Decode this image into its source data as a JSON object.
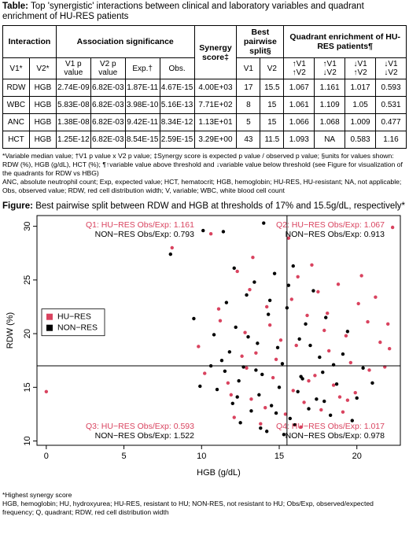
{
  "table": {
    "label": "Table:",
    "title": "Top 'synergistic' interactions between clinical and laboratory variables and quadrant enrichment of HU-RES patients",
    "groups": [
      "Interaction",
      "Association significance",
      "Synergy score‡",
      "Best pairwise split§",
      "Quadrant enrichment of HU-RES patients¶"
    ],
    "columns": [
      "V1*",
      "V2*",
      "V1 p value",
      "V2 p value",
      "Exp.†",
      "Obs.",
      "V1",
      "V2",
      "↑V1 ↑V2",
      "↑V1 ↓V2",
      "↓V1 ↑V2",
      "↓V1 ↓V2"
    ],
    "rows": [
      [
        "RDW",
        "HGB",
        "2.74E-09",
        "6.82E-03",
        "1.87E-11",
        "4.67E-15",
        "4.00E+03",
        "17",
        "15.5",
        "1.067",
        "1.161",
        "1.017",
        "0.593"
      ],
      [
        "WBC",
        "HGB",
        "5.83E-08",
        "6.82E-03",
        "3.98E-10",
        "5.16E-13",
        "7.71E+02",
        "8",
        "15",
        "1.061",
        "1.109",
        "1.05",
        "0.531"
      ],
      [
        "ANC",
        "HGB",
        "1.38E-08",
        "6.82E-03",
        "9.42E-11",
        "8.34E-12",
        "1.13E+01",
        "5",
        "15",
        "1.066",
        "1.068",
        "1.009",
        "0.477"
      ],
      [
        "HCT",
        "HGB",
        "1.25E-12",
        "6.82E-03",
        "8.54E-15",
        "2.59E-15",
        "3.29E+00",
        "43",
        "11.5",
        "1.093",
        "NA",
        "0.583",
        "1.16"
      ]
    ],
    "notes": [
      "*Variable median value; †V1 p value x V2 p value; ‡Synergy score is expected p value / observed p value; §units for values shown: RDW (%), HGB (g/dL), HCT (%); ¶↑variable value above threshold and ↓variable value below threshold (see Figure for visualization of the quadrants for RDW vs HBG)",
      "ANC, absolute neutrophil count; Exp, expected value; HCT, hematocrit; HGB, hemoglobin; HU-RES, HU-resistant; NA, not applicable; Obs, observed value; RDW, red cell distribution width; V, variable; WBC, white blood cell count"
    ]
  },
  "chart_data": {
    "type": "scatter",
    "label": "Figure:",
    "title": "Best pairwise split between RDW and HGB at thresholds of 17% and 15.5g/dL, respectively*",
    "xlabel": "HGB (g/dL)",
    "ylabel": "RDW (%)",
    "xlim": [
      -0.6,
      22.8
    ],
    "ylim": [
      9.6,
      31
    ],
    "xticks": [
      0,
      5,
      10,
      15,
      20
    ],
    "yticks": [
      10,
      15,
      20,
      25,
      30
    ],
    "x_threshold": 15.5,
    "y_threshold": 17,
    "legend": "left",
    "series": [
      {
        "name": "HU−RES",
        "color": "#d9435f",
        "x": [
          0,
          8.1,
          10.6,
          15.6,
          22.3,
          12.3,
          13.1,
          16.2,
          17.5,
          18.8,
          20.1,
          21.2,
          11.2,
          12.8,
          14.2,
          15.1,
          16.8,
          17.9,
          19.3,
          20.7,
          13.5,
          14.8,
          16.1,
          18.2,
          19.6,
          21.5,
          10.2,
          11.7,
          12.9,
          14.6,
          15.9,
          17.3,
          18.5,
          19.9,
          20.8,
          13.2,
          14.1,
          15.4,
          16.6,
          17.7,
          18.9,
          12.1,
          13.8,
          16.4,
          19.1,
          9.8,
          11.1,
          21.8,
          22.1,
          17.1,
          15.8,
          14.4,
          13.3,
          20.3,
          18.1,
          12.6,
          16.9,
          19.4,
          11.9,
          22.0
        ],
        "y": [
          14.6,
          28.0,
          29.3,
          28.9,
          29.9,
          25.8,
          24.1,
          25.3,
          23.9,
          24.6,
          22.8,
          23.4,
          21.2,
          20.1,
          22.5,
          19.4,
          21.7,
          20.3,
          19.8,
          21.1,
          18.2,
          17.6,
          18.9,
          18.4,
          17.3,
          19.2,
          16.3,
          15.4,
          16.8,
          15.9,
          14.7,
          16.1,
          15.2,
          14.5,
          16.6,
          13.9,
          13.1,
          12.5,
          13.6,
          12.9,
          14.1,
          12.2,
          11.6,
          11.3,
          12.7,
          18.8,
          22.3,
          16.9,
          18.6,
          26.4,
          23.2,
          20.8,
          27.1,
          25.4,
          21.9,
          17.9,
          15.6,
          13.8,
          14.3,
          20.9
        ]
      },
      {
        "name": "NON−RES",
        "color": "#000000",
        "x": [
          8.0,
          10.1,
          11.4,
          14.0,
          12.1,
          13.4,
          14.7,
          15.9,
          17.2,
          11.6,
          12.9,
          14.3,
          15.5,
          16.7,
          18.0,
          19.4,
          10.8,
          12.2,
          13.6,
          14.9,
          16.3,
          17.6,
          19.1,
          20.4,
          11.3,
          12.7,
          13.9,
          15.2,
          16.5,
          17.8,
          9.9,
          11.0,
          12.4,
          13.7,
          15.0,
          16.2,
          17.4,
          18.7,
          20.0,
          12.0,
          13.2,
          14.5,
          15.7,
          16.9,
          18.3,
          19.7,
          12.5,
          13.8,
          14.2,
          15.3,
          16.0,
          10.6,
          11.8,
          13.0,
          14.4,
          17.0,
          18.5,
          21.0,
          9.5,
          13.5,
          12.3,
          14.8,
          16.4,
          15.6,
          11.5,
          17.9
        ],
        "y": [
          27.4,
          29.6,
          29.5,
          30.3,
          26.1,
          24.8,
          25.6,
          26.3,
          24.0,
          22.9,
          23.6,
          21.8,
          22.4,
          20.9,
          21.5,
          20.2,
          19.9,
          20.6,
          19.1,
          18.7,
          19.5,
          17.8,
          18.1,
          16.8,
          17.5,
          16.9,
          16.2,
          17.2,
          15.8,
          16.4,
          15.1,
          14.8,
          15.6,
          14.3,
          15.0,
          14.6,
          13.9,
          15.3,
          14.0,
          13.5,
          12.8,
          13.3,
          12.1,
          13.0,
          12.4,
          11.9,
          11.7,
          11.2,
          10.9,
          10.6,
          11.5,
          17.0,
          18.3,
          19.7,
          23.1,
          18.9,
          17.1,
          15.4,
          21.4,
          16.6,
          14.1,
          12.6,
          16.0,
          24.5,
          16.5,
          13.7
        ]
      }
    ],
    "annotations": [
      {
        "corner": "top-left",
        "lines": [
          {
            "text": "Q1: HU−RES Obs/Exp: 1.161",
            "color": "#d9435f"
          },
          {
            "text": "NON−RES Obs/Exp: 0.793",
            "color": "#000000"
          }
        ]
      },
      {
        "corner": "top-right",
        "lines": [
          {
            "text": "Q2: HU−RES Obs/Exp: 1.067",
            "color": "#d9435f"
          },
          {
            "text": "NON−RES Obs/Exp: 0.913",
            "color": "#000000"
          }
        ]
      },
      {
        "corner": "bottom-left",
        "lines": [
          {
            "text": "Q3: HU−RES Obs/Exp: 0.593",
            "color": "#d9435f"
          },
          {
            "text": "NON−RES Obs/Exp: 1.522",
            "color": "#000000"
          }
        ]
      },
      {
        "corner": "bottom-right",
        "lines": [
          {
            "text": "Q4: HU−RES Obs/Exp: 1.017",
            "color": "#d9435f"
          },
          {
            "text": "NON−RES Obs/Exp: 0.978",
            "color": "#000000"
          }
        ]
      }
    ],
    "notes": [
      "*Highest synergy score",
      "HGB, hemoglobin; HU, hydroxyurea; HU-RES, resistant to HU; NON-RES, not resistant to HU; Obs/Exp, observed/expected frequency; Q, quadrant; RDW, red cell distribution width"
    ]
  }
}
